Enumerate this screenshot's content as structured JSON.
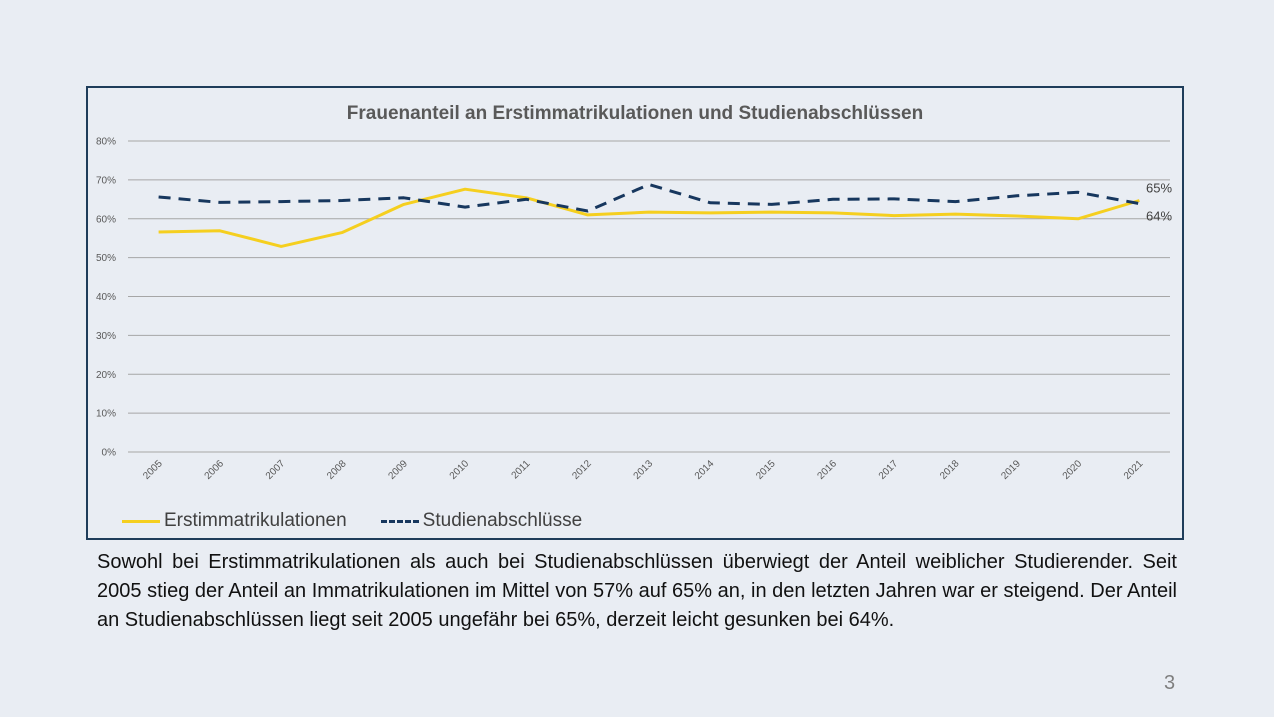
{
  "slide": {
    "paragraph": "Sowohl bei Erstimmatrikulationen als auch bei Studienabschlüssen überwiegt der Anteil weiblicher Studierender. Seit 2005 stieg der Anteil an Immatrikulationen im Mittel von 57% auf 65% an, in den letzten Jahren war er steigend. Der Anteil an Studienabschlüssen liegt seit 2005 ungefähr bei 65%, derzeit leicht gesunken bei 64%.",
    "page_number": "3"
  },
  "chart_data": {
    "type": "line",
    "title": "Frauenanteil an Erstimmatrikulationen und Studienabschlüssen",
    "xlabel": "",
    "ylabel": "",
    "ylim": [
      0,
      80
    ],
    "yticks": [
      "0%",
      "10%",
      "20%",
      "30%",
      "40%",
      "50%",
      "60%",
      "70%",
      "80%"
    ],
    "grid": true,
    "legend_position": "bottom-left",
    "categories": [
      "2005",
      "2006",
      "2007",
      "2008",
      "2009",
      "2010",
      "2011",
      "2012",
      "2013",
      "2014",
      "2015",
      "2016",
      "2017",
      "2018",
      "2019",
      "2020",
      "2021"
    ],
    "series": [
      {
        "name": "Erstimmatrikulationen",
        "color": "#f5cf1f",
        "style": "solid",
        "values": [
          56.6,
          56.9,
          52.9,
          56.5,
          63.7,
          67.6,
          65.4,
          61.0,
          61.7,
          61.5,
          61.7,
          61.5,
          60.8,
          61.2,
          60.7,
          60.0,
          64.7
        ],
        "end_label": "65%"
      },
      {
        "name": "Studienabschlüsse",
        "color": "#17375e",
        "style": "dashed",
        "values": [
          65.6,
          64.2,
          64.4,
          64.7,
          65.4,
          63.0,
          65.0,
          62.0,
          68.8,
          64.1,
          63.7,
          65.0,
          65.1,
          64.4,
          65.9,
          66.8,
          63.9
        ],
        "end_label": "64%"
      }
    ]
  }
}
